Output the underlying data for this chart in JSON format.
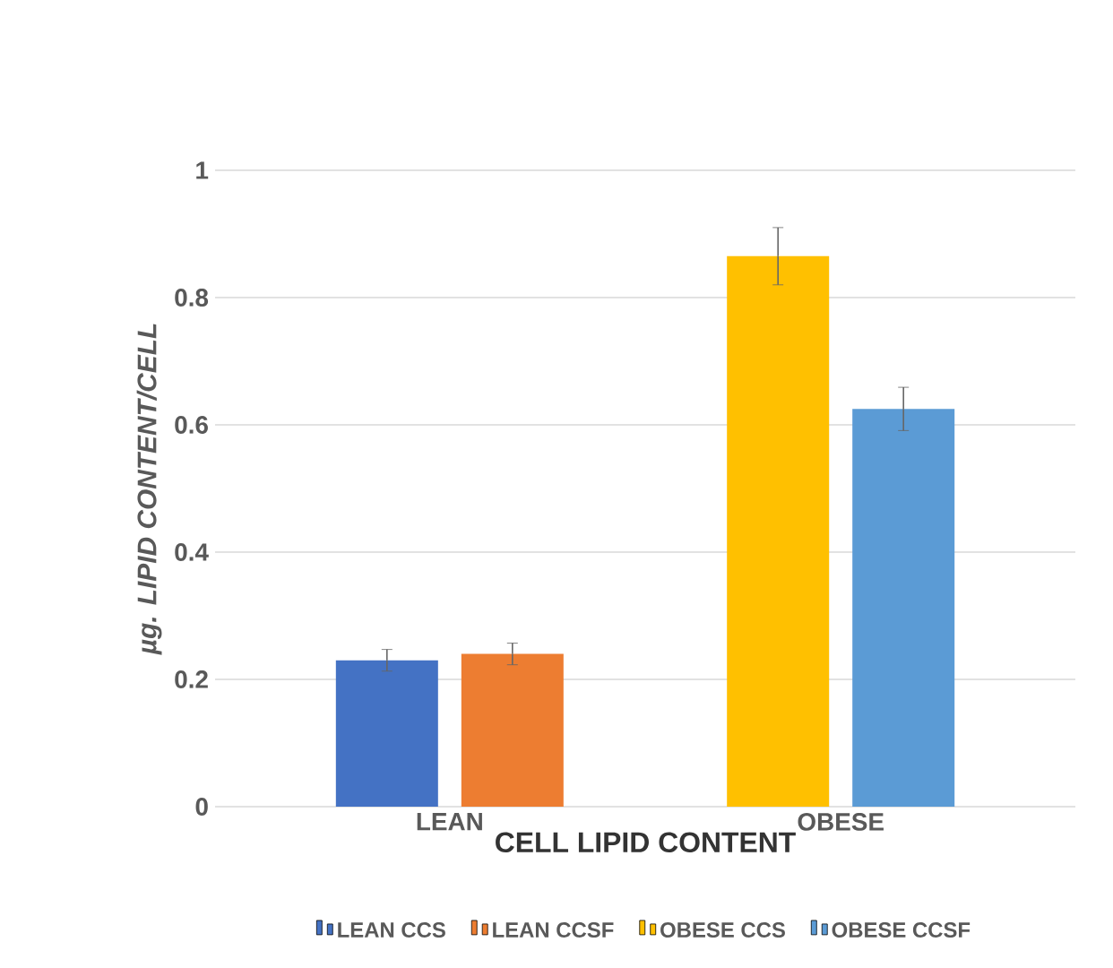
{
  "chart_data": {
    "type": "bar",
    "xlabel": "CELL LIPID CONTENT",
    "ylabel": "µg. LIPID CONTENT/CELL",
    "categories": [
      "LEAN",
      "OBESE"
    ],
    "series": [
      {
        "name": "LEAN CCS",
        "color": "#4472c4",
        "values": [
          0.23,
          null
        ],
        "errors": [
          0.017,
          null
        ]
      },
      {
        "name": "LEAN CCSF",
        "color": "#ed7d31",
        "values": [
          0.24,
          null
        ],
        "errors": [
          0.017,
          null
        ]
      },
      {
        "name": "OBESE CCS",
        "color": "#ffc000",
        "values": [
          null,
          0.865
        ],
        "errors": [
          null,
          0.045
        ]
      },
      {
        "name": "OBESE CCSF",
        "color": "#5b9bd5",
        "values": [
          null,
          0.625
        ],
        "errors": [
          null,
          0.034
        ]
      }
    ],
    "ylim": [
      0,
      1
    ],
    "yticks": [
      0,
      0.2,
      0.4,
      0.6,
      0.8,
      1
    ],
    "grid": "y",
    "legend": "bottom"
  }
}
